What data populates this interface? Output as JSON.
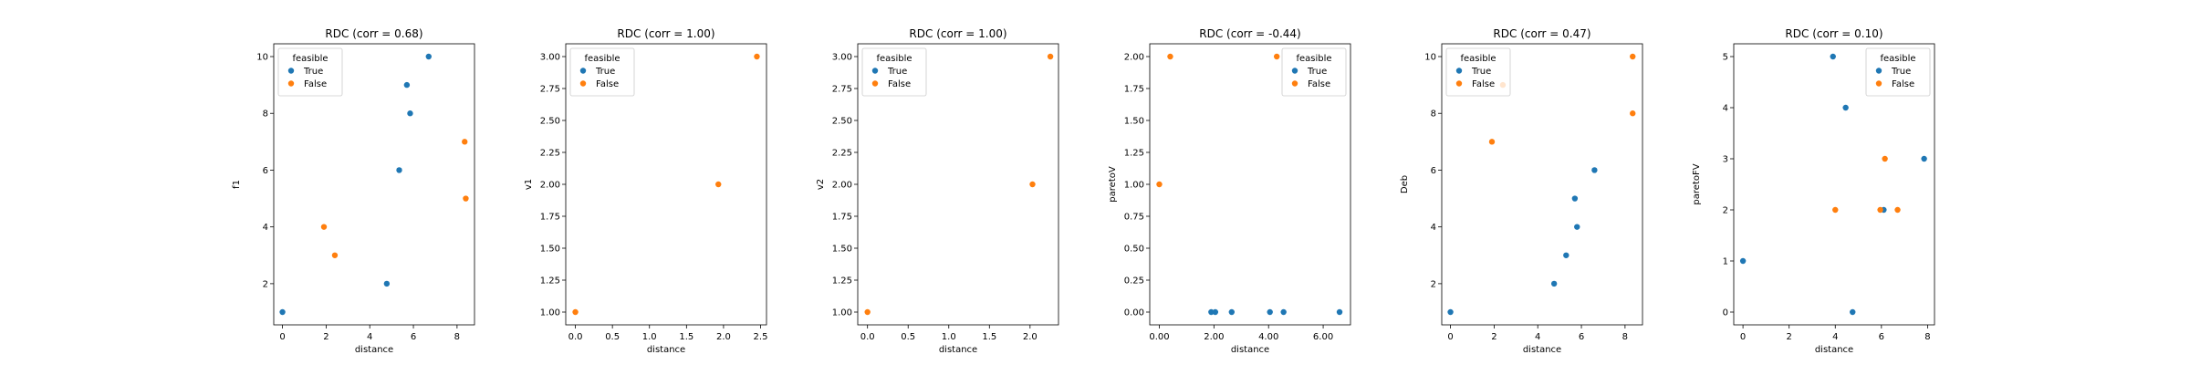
{
  "figure": {
    "legend_title": "feasible",
    "legend_labels": [
      "True",
      "False"
    ],
    "colors": {
      "True": "#1f77b4",
      "False": "#ff7f0e"
    }
  },
  "chart_data": [
    {
      "type": "scatter",
      "title": "RDC (corr = 0.68)",
      "xlabel": "distance",
      "ylabel": "f1",
      "xlim": [
        -0.4,
        8.8
      ],
      "ylim": [
        0.55,
        10.45
      ],
      "xticks": [
        0,
        2,
        4,
        6,
        8
      ],
      "yticks": [
        2,
        4,
        6,
        8,
        10
      ],
      "tick_format": 0,
      "legend_position": "top-left",
      "series": [
        {
          "name": "True",
          "points": [
            [
              0,
              1
            ],
            [
              4.78,
              2
            ],
            [
              5.35,
              6
            ],
            [
              5.7,
              9
            ],
            [
              5.85,
              8
            ],
            [
              6.7,
              10
            ]
          ]
        },
        {
          "name": "False",
          "points": [
            [
              1.9,
              4
            ],
            [
              2.4,
              3
            ],
            [
              8.35,
              7
            ],
            [
              8.4,
              5
            ]
          ]
        }
      ]
    },
    {
      "type": "scatter",
      "title": "RDC (corr = 1.00)",
      "xlabel": "distance",
      "ylabel": "v1",
      "xlim": [
        -0.13,
        2.58
      ],
      "ylim": [
        0.9,
        3.1
      ],
      "xticks": [
        0,
        0.5,
        1.0,
        1.5,
        2.0,
        2.5
      ],
      "yticks": [
        1.0,
        1.25,
        1.5,
        1.75,
        2.0,
        2.25,
        2.5,
        2.75,
        3.0
      ],
      "tick_format": 2,
      "x_tick_format": 1,
      "legend_position": "top-left",
      "series": [
        {
          "name": "True",
          "points": []
        },
        {
          "name": "False",
          "points": [
            [
              0,
              1
            ],
            [
              1.93,
              2
            ],
            [
              2.45,
              3
            ]
          ]
        }
      ]
    },
    {
      "type": "scatter",
      "title": "RDC (corr = 1.00)",
      "xlabel": "distance",
      "ylabel": "v2",
      "xlim": [
        -0.12,
        2.35
      ],
      "ylim": [
        0.9,
        3.1
      ],
      "xticks": [
        0,
        0.5,
        1.0,
        1.5,
        2.0
      ],
      "yticks": [
        1.0,
        1.25,
        1.5,
        1.75,
        2.0,
        2.25,
        2.5,
        2.75,
        3.0
      ],
      "tick_format": 2,
      "x_tick_format": 1,
      "legend_position": "top-left",
      "series": [
        {
          "name": "True",
          "points": []
        },
        {
          "name": "False",
          "points": [
            [
              0,
              1
            ],
            [
              2.03,
              2
            ],
            [
              2.25,
              3
            ]
          ]
        }
      ]
    },
    {
      "type": "scatter",
      "title": "RDC (corr = -0.44)",
      "xlabel": "distance",
      "ylabel": "paretoV",
      "xlim": [
        -0.35,
        7.0
      ],
      "ylim": [
        -0.1,
        2.1
      ],
      "xticks": [
        0,
        2,
        4,
        6
      ],
      "yticks": [
        0.0,
        0.25,
        0.5,
        0.75,
        1.0,
        1.25,
        1.5,
        1.75,
        2.0
      ],
      "tick_format": 2,
      "legend_position": "top-right",
      "series": [
        {
          "name": "True",
          "points": [
            [
              1.9,
              0
            ],
            [
              2.05,
              0
            ],
            [
              2.65,
              0
            ],
            [
              4.05,
              0
            ],
            [
              4.55,
              0
            ],
            [
              6.6,
              0
            ]
          ]
        },
        {
          "name": "False",
          "points": [
            [
              0,
              1
            ],
            [
              0.4,
              2
            ],
            [
              4.3,
              2
            ]
          ]
        }
      ]
    },
    {
      "type": "scatter",
      "title": "RDC (corr = 0.47)",
      "xlabel": "distance",
      "ylabel": "Deb",
      "xlim": [
        -0.4,
        8.8
      ],
      "ylim": [
        0.55,
        10.45
      ],
      "xticks": [
        0,
        2,
        4,
        6,
        8
      ],
      "yticks": [
        2,
        4,
        6,
        8,
        10
      ],
      "tick_format": 0,
      "legend_position": "top-left",
      "series": [
        {
          "name": "True",
          "points": [
            [
              0,
              1
            ],
            [
              4.75,
              2
            ],
            [
              5.3,
              3
            ],
            [
              5.8,
              4
            ],
            [
              5.7,
              5
            ],
            [
              6.6,
              6
            ]
          ]
        },
        {
          "name": "False",
          "points": [
            [
              1.9,
              7
            ],
            [
              2.4,
              9
            ],
            [
              8.35,
              8
            ],
            [
              8.35,
              10
            ]
          ]
        }
      ]
    },
    {
      "type": "scatter",
      "title": "RDC (corr = 0.10)",
      "xlabel": "distance",
      "ylabel": "paretoFV",
      "xlim": [
        -0.4,
        8.3
      ],
      "ylim": [
        -0.25,
        5.25
      ],
      "xticks": [
        0,
        2,
        4,
        6,
        8
      ],
      "yticks": [
        0,
        1,
        2,
        3,
        4,
        5
      ],
      "tick_format": 0,
      "legend_position": "top-right",
      "series": [
        {
          "name": "True",
          "points": [
            [
              0,
              1
            ],
            [
              3.9,
              5
            ],
            [
              4.45,
              4
            ],
            [
              4.75,
              0
            ],
            [
              6.1,
              2
            ],
            [
              7.85,
              3
            ]
          ]
        },
        {
          "name": "False",
          "points": [
            [
              4.0,
              2
            ],
            [
              5.95,
              2
            ],
            [
              6.15,
              3
            ],
            [
              6.7,
              2
            ]
          ]
        }
      ]
    }
  ]
}
